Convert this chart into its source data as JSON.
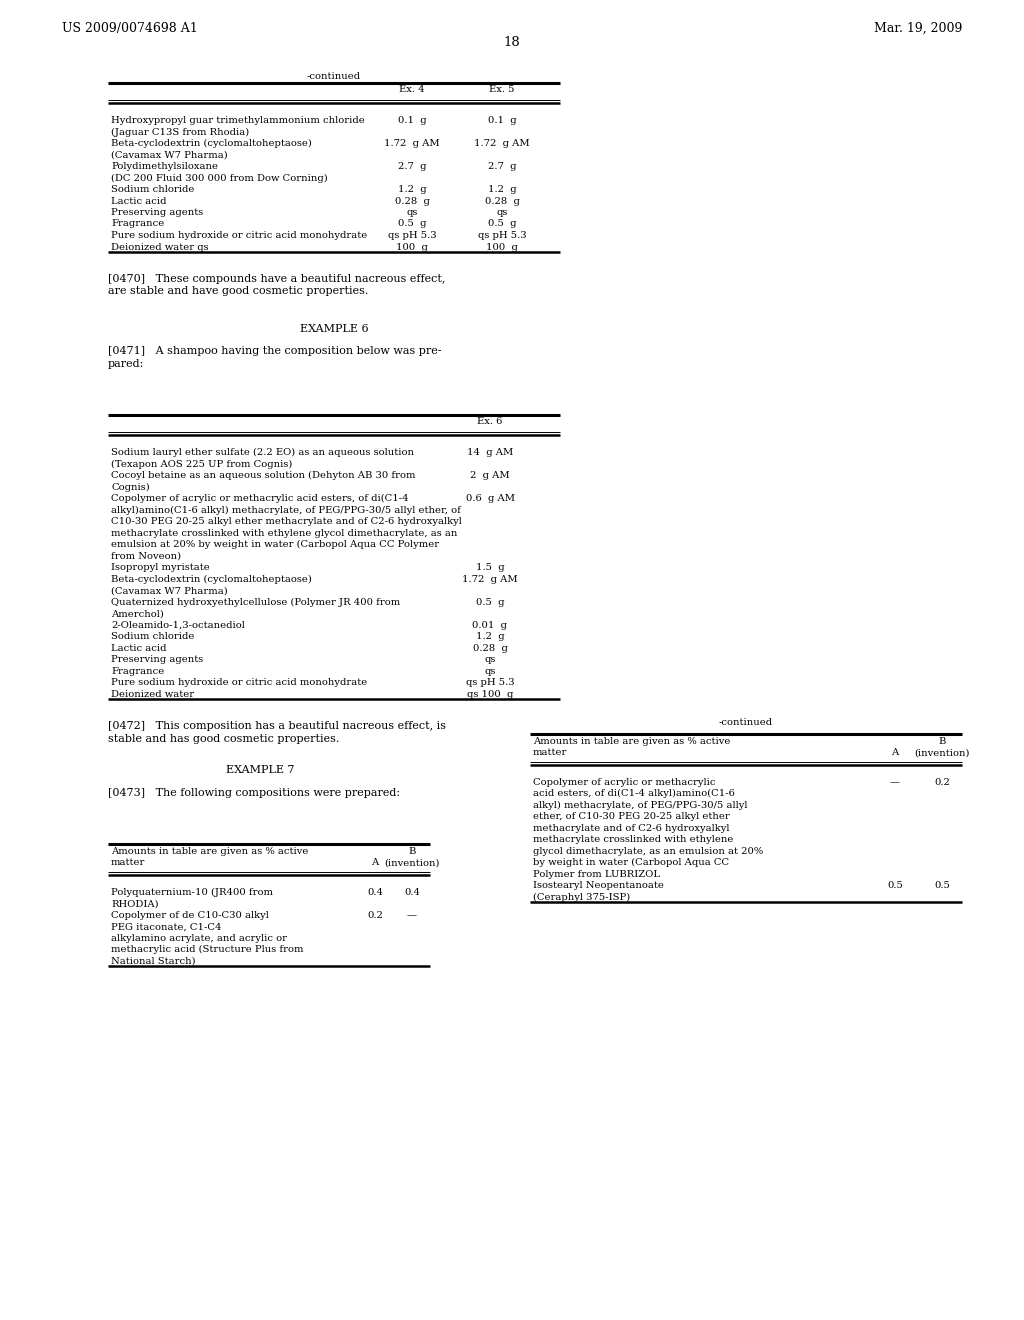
{
  "header_left": "US 2009/0074698 A1",
  "header_right": "Mar. 19, 2009",
  "page_number": "18",
  "bg_color": "#ffffff",
  "text_color": "#000000",
  "table1_title": "-continued",
  "table1_cols_ex4": "Ex. 4",
  "table1_cols_ex5": "Ex. 5",
  "table1_rows": [
    [
      "Hydroxypropyl guar trimethylammonium chloride",
      "(Jaguar C13S from Rhodia)",
      "0.1  g",
      "0.1  g"
    ],
    [
      "Beta-cyclodextrin (cyclomaltoheptaose)",
      "(Cavamax W7 Pharma)",
      "1.72  g AM",
      "1.72  g AM"
    ],
    [
      "Polydimethylsiloxane",
      "(DC 200 Fluid 300 000 from Dow Corning)",
      "2.7  g",
      "2.7  g"
    ],
    [
      "Sodium chloride",
      "",
      "1.2  g",
      "1.2  g"
    ],
    [
      "Lactic acid",
      "",
      "0.28  g",
      "0.28  g"
    ],
    [
      "Preserving agents",
      "",
      "qs",
      "qs"
    ],
    [
      "Fragrance",
      "",
      "0.5  g",
      "0.5  g"
    ],
    [
      "Pure sodium hydroxide or citric acid monohydrate",
      "",
      "qs pH 5.3",
      "qs pH 5.3"
    ],
    [
      "Deionized water qs",
      "",
      "100  g",
      "100  g"
    ]
  ],
  "para_0470_1": "[0470]   These compounds have a beautiful nacreous effect,",
  "para_0470_2": "are stable and have good cosmetic properties.",
  "example6_title": "EXAMPLE 6",
  "para_0471_1": "[0471]   A shampoo having the composition below was pre-",
  "para_0471_2": "pared:",
  "table2_col_ex6": "Ex. 6",
  "table2_rows": [
    [
      "Sodium lauryl ether sulfate (2.2 EO) as an aqueous solution",
      "(Texapon AOS 225 UP from Cognis)",
      "14  g AM"
    ],
    [
      "Cocoyl betaine as an aqueous solution (Dehyton AB 30 from",
      "Cognis)",
      "2  g AM"
    ],
    [
      "Copolymer of acrylic or methacrylic acid esters, of di(C1-4",
      "alkyl)amino(C1-6 alkyl) methacrylate, of PEG/PPG-30/5 allyl ether, of",
      "C10-30 PEG 20-25 alkyl ether methacrylate and of C2-6 hydroxyalkyl",
      "methacrylate crosslinked with ethylene glycol dimethacrylate, as an",
      "emulsion at 20% by weight in water (Carbopol Aqua CC Polymer",
      "from Noveon)",
      "0.6  g AM"
    ],
    [
      "Isopropyl myristate",
      "",
      "1.5  g"
    ],
    [
      "Beta-cyclodextrin (cyclomaltoheptaose)",
      "(Cavamax W7 Pharma)",
      "1.72  g AM"
    ],
    [
      "Quaternized hydroxyethylcellulose (Polymer JR 400 from",
      "Amerchol)",
      "0.5  g"
    ],
    [
      "2-Oleamido-1,3-octanediol",
      "",
      "0.01  g"
    ],
    [
      "Sodium chloride",
      "",
      "1.2  g"
    ],
    [
      "Lactic acid",
      "",
      "0.28  g"
    ],
    [
      "Preserving agents",
      "",
      "qs"
    ],
    [
      "Fragrance",
      "",
      "qs"
    ],
    [
      "Pure sodium hydroxide or citric acid monohydrate",
      "",
      "qs pH 5.3"
    ],
    [
      "Deionized water",
      "",
      "qs 100  g"
    ]
  ],
  "para_0472_1": "[0472]   This composition has a beautiful nacreous effect, is",
  "para_0472_2": "stable and has good cosmetic properties.",
  "example7_title": "EXAMPLE 7",
  "para_0473": "[0473]   The following compositions were prepared:",
  "table3_hdr1": "Amounts in table are given as % active",
  "table3_hdr2": "matter",
  "table3_colA": "A",
  "table3_colB": "B (invention)",
  "table3_rows": [
    [
      "Polyquaternium-10 (JR400 from",
      "RHODIA)",
      "0.4",
      "0.4"
    ],
    [
      "Copolymer of de C10-C30 alkyl",
      "PEG itaconate, C1-C4",
      "alkylamino acrylate, and acrylic or",
      "methacrylic acid (Structure Plus from",
      "National Starch)",
      "0.2",
      "—"
    ]
  ],
  "table4_title": "-continued",
  "table4_hdr1": "Amounts in table are given as % active",
  "table4_hdr2": "matter",
  "table4_colA": "A",
  "table4_colB": "B (invention)",
  "table4_rows": [
    [
      "Copolymer of acrylic or methacrylic",
      "acid esters, of di(C1-4 alkyl)amino(C1-6",
      "alkyl) methacrylate, of PEG/PPG-30/5 allyl",
      "ether, of C10-30 PEG 20-25 alkyl ether",
      "methacrylate and of C2-6 hydroxyalkyl",
      "methacrylate crosslinked with ethylene",
      "glycol dimethacrylate, as an emulsion at 20%",
      "by weight in water (Carbopol Aqua CC",
      "Polymer from LUBRIZOL",
      "—",
      "0.2"
    ],
    [
      "Isostearyl Neopentanoate",
      "(Ceraphyl 375-ISP)",
      "0.5",
      "0.5"
    ]
  ]
}
